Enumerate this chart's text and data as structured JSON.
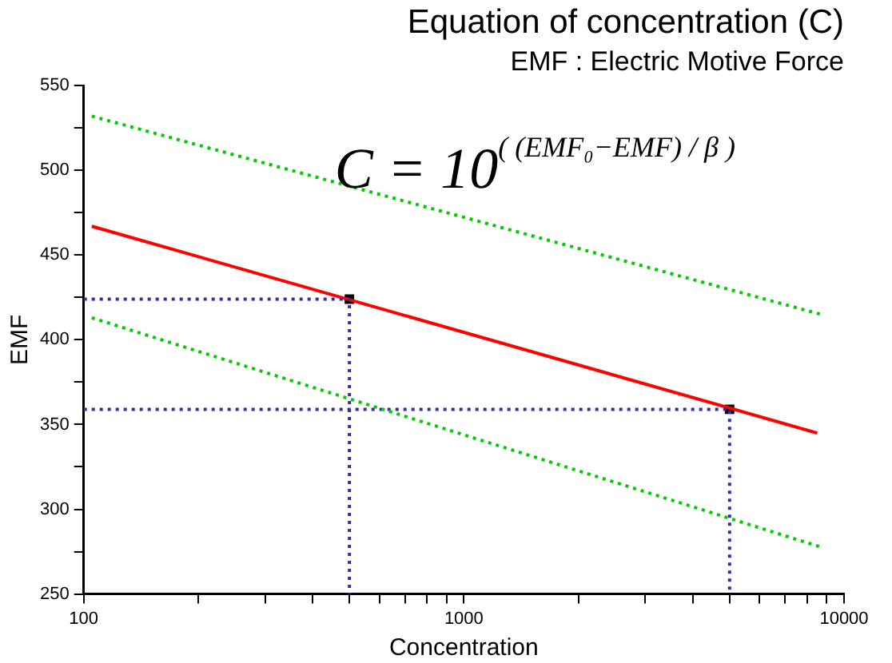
{
  "chart_data": {
    "type": "line",
    "title": "Equation of concentration (C)",
    "subtitle": "EMF : Electric Motive Force",
    "xlabel": "Concentration",
    "ylabel": "EMF",
    "annotations": [
      "C = 10$^{( (EMF₀−EMF) / β )}$"
    ],
    "log": "x",
    "grid": false,
    "legend": false,
    "xlim": [
      100,
      10000
    ],
    "ylim": [
      250,
      550
    ],
    "xticks": [
      100,
      {
        "value": 200,
        "label": null
      },
      {
        "value": 300,
        "label": null
      },
      {
        "value": 400,
        "label": null
      },
      {
        "value": 500,
        "label": null
      },
      {
        "value": 600,
        "label": null
      },
      {
        "value": 700,
        "label": null
      },
      {
        "value": 800,
        "label": null
      },
      {
        "value": 900,
        "label": null
      },
      1000,
      {
        "value": 2000,
        "label": null
      },
      {
        "value": 3000,
        "label": null
      },
      {
        "value": 4000,
        "label": null
      },
      {
        "value": 5000,
        "label": null
      },
      {
        "value": 6000,
        "label": null
      },
      {
        "value": 7000,
        "label": null
      },
      {
        "value": 8000,
        "label": null
      },
      {
        "value": 9000,
        "label": null
      },
      10000
    ],
    "yticks": [
      250,
      {
        "value": 275,
        "label": null
      },
      300,
      {
        "value": 325,
        "label": null
      },
      350,
      {
        "value": 375,
        "label": null
      },
      400,
      {
        "value": 425,
        "label": null
      },
      450,
      {
        "value": 475,
        "label": null
      },
      500,
      {
        "value": 525,
        "label": null
      },
      550
    ],
    "series": [
      {
        "type": "line",
        "color": "#00cc00",
        "line_style": "dotted",
        "marker": "none",
        "x": [
          105,
          8700
        ],
        "values": [
          532,
          415
        ]
      },
      {
        "type": "line",
        "color": "#00cc00",
        "line_style": "dotted",
        "marker": "none",
        "x": [
          105,
          8600
        ],
        "values": [
          413,
          278
        ]
      },
      {
        "type": "line",
        "color": "#333399",
        "line_style": "dotted",
        "marker": "none",
        "x": [
          100,
          500,
          500
        ],
        "values": [
          424,
          424,
          250
        ]
      },
      {
        "type": "line",
        "color": "#333399",
        "line_style": "dotted",
        "marker": "none",
        "x": [
          100,
          5000,
          5000
        ],
        "values": [
          359,
          359,
          250
        ]
      },
      {
        "type": "line",
        "color": "#ff0000",
        "line_style": "solid",
        "marker": "none",
        "x": [
          105,
          8500
        ],
        "values": [
          467,
          345
        ]
      },
      {
        "type": "scatter",
        "color": "#000000",
        "marker": "square",
        "x": [
          500,
          5000
        ],
        "values": [
          424,
          359
        ]
      }
    ]
  }
}
